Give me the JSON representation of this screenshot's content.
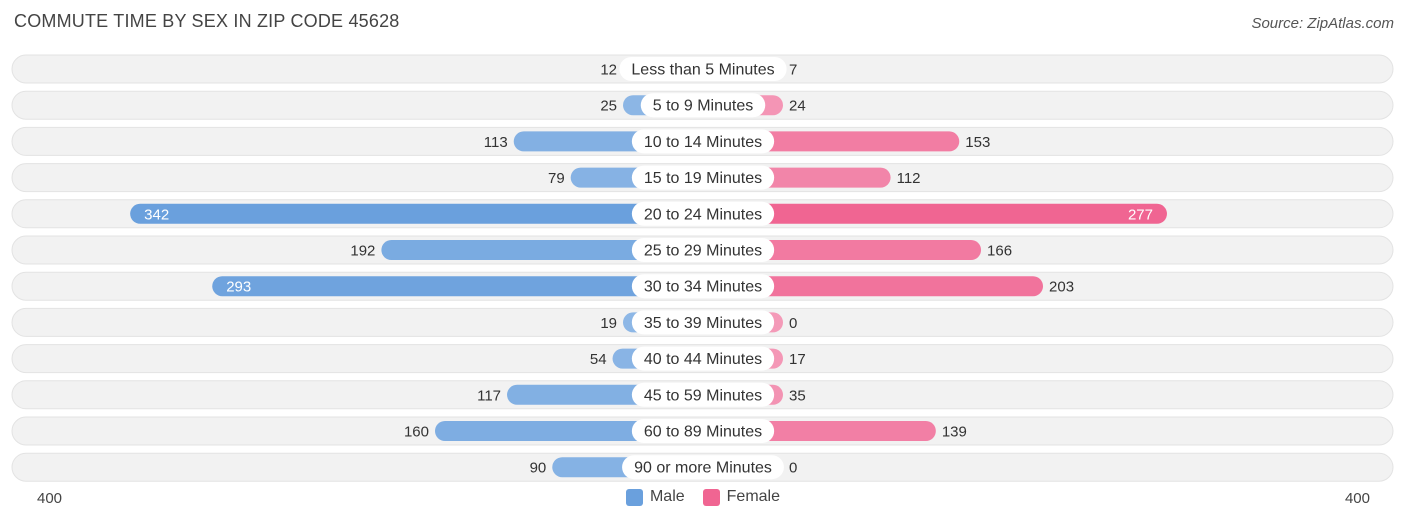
{
  "header": {
    "title": "COMMUTE TIME BY SEX IN ZIP CODE 45628",
    "source": "Source: ZipAtlas.com"
  },
  "axis": {
    "left_label": "400",
    "right_label": "400"
  },
  "legend": {
    "male_label": "Male",
    "female_label": "Female"
  },
  "colors": {
    "male": "#8fb8e6",
    "male_strong": "#6aa0dd",
    "female": "#f49ab8",
    "female_strong": "#f06592",
    "row_bg": "#f2f2f2"
  },
  "chart_data": {
    "type": "bar",
    "orientation": "horizontal-diverging",
    "title": "COMMUTE TIME BY SEX IN ZIP CODE 45628",
    "categories": [
      "Less than 5 Minutes",
      "5 to 9 Minutes",
      "10 to 14 Minutes",
      "15 to 19 Minutes",
      "20 to 24 Minutes",
      "25 to 29 Minutes",
      "30 to 34 Minutes",
      "35 to 39 Minutes",
      "40 to 44 Minutes",
      "45 to 59 Minutes",
      "60 to 89 Minutes",
      "90 or more Minutes"
    ],
    "series": [
      {
        "name": "Male",
        "values": [
          12,
          25,
          113,
          79,
          342,
          192,
          293,
          19,
          54,
          117,
          160,
          90
        ]
      },
      {
        "name": "Female",
        "values": [
          7,
          24,
          153,
          112,
          277,
          166,
          203,
          0,
          17,
          35,
          139,
          0
        ]
      }
    ],
    "xlim": [
      -400,
      400
    ],
    "legend_position": "bottom-center"
  }
}
